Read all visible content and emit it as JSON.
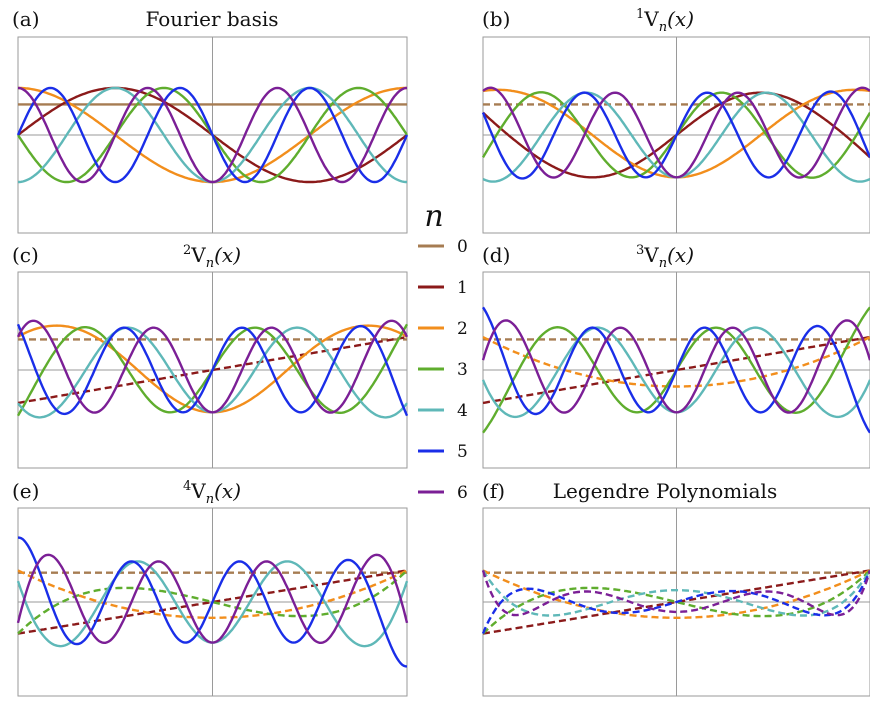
{
  "legend": {
    "title": "n",
    "entries": [
      {
        "label": "0",
        "color": "#a67c52"
      },
      {
        "label": "1",
        "color": "#8b1a1a"
      },
      {
        "label": "2",
        "color": "#f28e1c"
      },
      {
        "label": "3",
        "color": "#5fad2e"
      },
      {
        "label": "4",
        "color": "#5fb8b8"
      },
      {
        "label": "5",
        "color": "#1a2ee8"
      },
      {
        "label": "6",
        "color": "#7b1f96"
      }
    ]
  },
  "chart_data": [
    {
      "type": "line",
      "letter": "(a)",
      "title": "Fourier basis",
      "basis": "fourier",
      "dashed": [],
      "grid": false,
      "series": [
        {
          "label": "0"
        },
        {
          "label": "1"
        },
        {
          "label": "2"
        },
        {
          "label": "3"
        },
        {
          "label": "4"
        },
        {
          "label": "5"
        },
        {
          "label": "6"
        }
      ]
    },
    {
      "type": "line",
      "letter": "(b)",
      "title_sup": "1",
      "title_main": "V",
      "title_sub": "n",
      "title_arg": "(x)",
      "basis": "v1",
      "dashed": [
        "0"
      ],
      "grid": false,
      "series": [
        {
          "label": "0"
        },
        {
          "label": "1"
        },
        {
          "label": "2"
        },
        {
          "label": "3"
        },
        {
          "label": "4"
        },
        {
          "label": "5"
        },
        {
          "label": "6"
        }
      ]
    },
    {
      "type": "line",
      "letter": "(c)",
      "title_sup": "2",
      "title_main": "V",
      "title_sub": "n",
      "title_arg": "(x)",
      "basis": "v2",
      "dashed": [
        "0",
        "1"
      ],
      "grid": false,
      "series": [
        {
          "label": "0"
        },
        {
          "label": "1"
        },
        {
          "label": "2"
        },
        {
          "label": "3"
        },
        {
          "label": "4"
        },
        {
          "label": "5"
        },
        {
          "label": "6"
        }
      ]
    },
    {
      "type": "line",
      "letter": "(d)",
      "title_sup": "3",
      "title_main": "V",
      "title_sub": "n",
      "title_arg": "(x)",
      "basis": "v3",
      "dashed": [
        "0",
        "1",
        "2"
      ],
      "grid": false,
      "series": [
        {
          "label": "0"
        },
        {
          "label": "1"
        },
        {
          "label": "2"
        },
        {
          "label": "3"
        },
        {
          "label": "4"
        },
        {
          "label": "5"
        },
        {
          "label": "6"
        }
      ]
    },
    {
      "type": "line",
      "letter": "(e)",
      "title_sup": "4",
      "title_main": "V",
      "title_sub": "n",
      "title_arg": "(x)",
      "basis": "v4",
      "dashed": [
        "0",
        "1",
        "2",
        "3"
      ],
      "grid": false,
      "series": [
        {
          "label": "0"
        },
        {
          "label": "1"
        },
        {
          "label": "2"
        },
        {
          "label": "3"
        },
        {
          "label": "4"
        },
        {
          "label": "5"
        },
        {
          "label": "6"
        }
      ]
    },
    {
      "type": "line",
      "letter": "(f)",
      "title": "Legendre Polynomials",
      "basis": "legendre",
      "dashed": [
        "0",
        "1",
        "2",
        "3",
        "4",
        "5",
        "6"
      ],
      "grid": false,
      "series": [
        {
          "label": "0"
        },
        {
          "label": "1"
        },
        {
          "label": "2"
        },
        {
          "label": "3"
        },
        {
          "label": "4"
        },
        {
          "label": "5"
        },
        {
          "label": "6"
        }
      ]
    }
  ]
}
